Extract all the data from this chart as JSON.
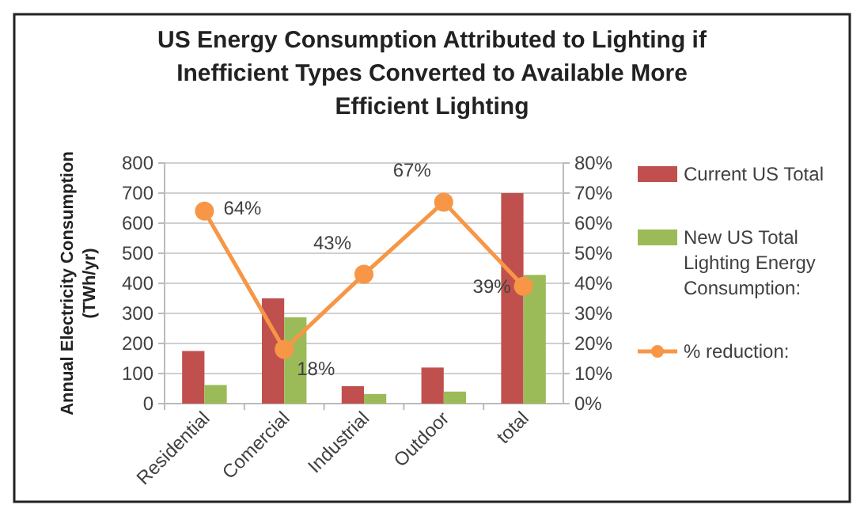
{
  "chart_data": {
    "type": "bar",
    "title": "US Energy Consumption  Attributed to Lighting if Inefficient Types Converted to Available More Efficient Lighting",
    "ylabel": "Annual Electricity Consumption (TWh/yr)",
    "categories": [
      "Residential",
      "Comercial",
      "Industrial",
      "Outdoor",
      "total"
    ],
    "series": [
      {
        "name": "Current US Total",
        "color": "#c0504d",
        "values": [
          175,
          350,
          58,
          120,
          700
        ]
      },
      {
        "name": "New US Total Lighting Energy Consumption:",
        "color": "#9bbb59",
        "values": [
          62,
          287,
          32,
          40,
          428
        ]
      },
      {
        "name": "% reduction:",
        "type": "line",
        "axis": "y2",
        "color": "#f79646",
        "values": [
          64,
          18,
          43,
          67,
          39
        ],
        "value_labels": [
          "64%",
          "18%",
          "43%",
          "67%",
          "39%"
        ]
      }
    ],
    "ylim": [
      0,
      800
    ],
    "yticks": [
      0,
      100,
      200,
      300,
      400,
      500,
      600,
      700,
      800
    ],
    "y2lim": [
      0,
      80
    ],
    "y2ticks": [
      {
        "value": 0,
        "label": "0%"
      },
      {
        "value": 10,
        "label": "10%"
      },
      {
        "value": 20,
        "label": "20%"
      },
      {
        "value": 30,
        "label": "30%"
      },
      {
        "value": 40,
        "label": "40%"
      },
      {
        "value": 50,
        "label": "50%"
      },
      {
        "value": 60,
        "label": "60%"
      },
      {
        "value": 70,
        "label": "70%"
      },
      {
        "value": 80,
        "label": "80%"
      }
    ],
    "grid": "y",
    "legend": "right",
    "marker": "circle",
    "line_style": "solid"
  }
}
